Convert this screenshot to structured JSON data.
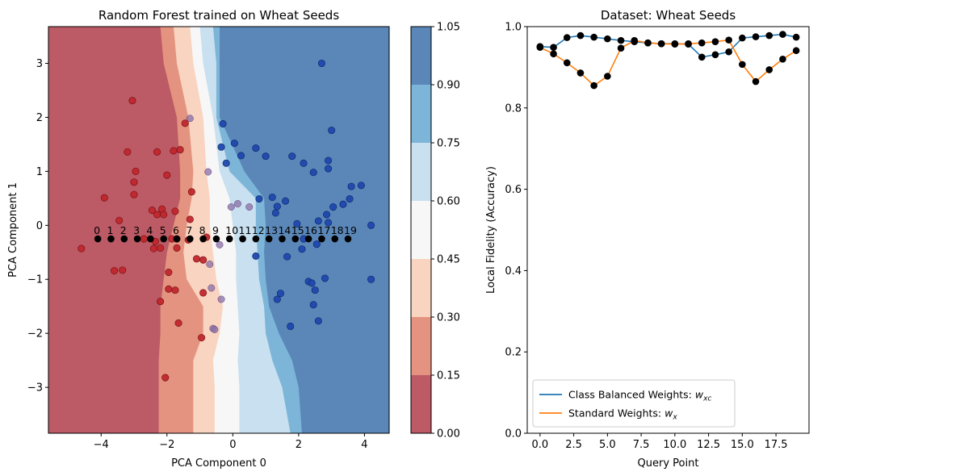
{
  "chart_data": [
    {
      "type": "scatter",
      "title": "Random Forest trained on Wheat Seeds",
      "xlabel": "PCA Component 0",
      "ylabel": "PCA Component 1",
      "xlim": [
        -5.6,
        4.75
      ],
      "ylim": [
        -3.85,
        3.68
      ],
      "x_ticks": [
        -4,
        -2,
        0,
        2,
        4
      ],
      "y_ticks": [
        -3,
        -2,
        -1,
        0,
        1,
        2,
        3
      ],
      "background": "decision surface (filled contour of predicted class-1 probability)",
      "boundary_profile": {
        "y": [
          3.68,
          3.0,
          2.0,
          1.0,
          0.5,
          0.0,
          -0.5,
          -1.0,
          -1.5,
          -2.0,
          -2.5,
          -3.0,
          -3.85
        ],
        "level_0.15": [
          -2.2,
          -2.1,
          -1.7,
          -1.6,
          -1.6,
          -1.8,
          -2.0,
          -2.1,
          -2.2,
          -2.2,
          -2.25,
          -2.25,
          -2.25
        ],
        "level_0.30": [
          -1.8,
          -1.7,
          -1.35,
          -1.2,
          -1.25,
          -1.4,
          -1.5,
          -1.4,
          -0.9,
          -0.9,
          -1.2,
          -1.2,
          -1.2
        ],
        "level_0.45": [
          -1.3,
          -1.2,
          -0.9,
          -0.8,
          -0.7,
          -0.7,
          -0.6,
          -0.5,
          -0.3,
          -0.4,
          -0.6,
          -0.55,
          -0.55
        ],
        "level_0.60": [
          -1.0,
          -0.9,
          -0.6,
          -0.4,
          -0.1,
          0.0,
          0.1,
          0.1,
          0.15,
          0.2,
          0.15,
          0.2,
          0.2
        ],
        "level_0.75": [
          -0.6,
          -0.5,
          -0.5,
          -0.1,
          0.7,
          0.7,
          0.75,
          0.8,
          0.95,
          1.0,
          1.2,
          1.5,
          1.75
        ],
        "level_0.90": [
          -0.4,
          -0.4,
          -0.4,
          0.35,
          0.95,
          1.0,
          0.95,
          1.0,
          1.1,
          1.4,
          1.8,
          2.0,
          2.1
        ]
      },
      "points_class0": [
        [
          -4.6,
          -0.43
        ],
        [
          -3.9,
          0.51
        ],
        [
          -3.6,
          -0.84
        ],
        [
          -3.45,
          0.09
        ],
        [
          -3.35,
          -0.83
        ],
        [
          -3.2,
          1.36
        ],
        [
          -3.05,
          2.31
        ],
        [
          -3.0,
          0.8
        ],
        [
          -2.95,
          1.0
        ],
        [
          -3.0,
          0.57
        ],
        [
          -2.7,
          -0.25
        ],
        [
          -2.45,
          0.28
        ],
        [
          -2.4,
          -0.43
        ],
        [
          -2.35,
          -0.3
        ],
        [
          -2.3,
          1.36
        ],
        [
          -2.3,
          0.2
        ],
        [
          -2.2,
          -0.42
        ],
        [
          -2.2,
          -1.41
        ],
        [
          -2.15,
          0.3
        ],
        [
          -2.1,
          0.2
        ],
        [
          -2.05,
          -2.82
        ],
        [
          -2.0,
          0.93
        ],
        [
          -1.95,
          -0.87
        ],
        [
          -1.95,
          -1.18
        ],
        [
          -1.85,
          -0.25
        ],
        [
          -1.8,
          1.38
        ],
        [
          -1.75,
          -1.2
        ],
        [
          -1.75,
          0.26
        ],
        [
          -1.7,
          -0.42
        ],
        [
          -1.7,
          -0.25
        ],
        [
          -1.65,
          -1.81
        ],
        [
          -1.6,
          1.4
        ],
        [
          -1.45,
          1.89
        ],
        [
          -1.35,
          -0.27
        ],
        [
          -1.3,
          0.11
        ],
        [
          -1.25,
          0.62
        ],
        [
          -1.1,
          -0.62
        ],
        [
          -0.95,
          -2.08
        ],
        [
          -0.9,
          -0.64
        ],
        [
          -0.9,
          -1.25
        ],
        [
          -0.8,
          -0.22
        ]
      ],
      "points_class1": [
        [
          -0.35,
          1.45
        ],
        [
          -0.3,
          1.88
        ],
        [
          -0.2,
          1.15
        ],
        [
          0.05,
          1.52
        ],
        [
          0.25,
          1.29
        ],
        [
          0.7,
          -0.57
        ],
        [
          0.7,
          1.43
        ],
        [
          0.8,
          0.49
        ],
        [
          1.0,
          1.28
        ],
        [
          1.2,
          0.52
        ],
        [
          1.3,
          0.23
        ],
        [
          1.35,
          0.35
        ],
        [
          1.35,
          -1.37
        ],
        [
          1.45,
          -1.26
        ],
        [
          1.6,
          0.45
        ],
        [
          1.65,
          -0.58
        ],
        [
          1.75,
          -1.87
        ],
        [
          1.8,
          1.28
        ],
        [
          1.95,
          0.03
        ],
        [
          2.1,
          -0.44
        ],
        [
          2.15,
          1.15
        ],
        [
          2.15,
          -0.25
        ],
        [
          2.3,
          -1.04
        ],
        [
          2.4,
          -1.07
        ],
        [
          2.45,
          0.98
        ],
        [
          2.45,
          -1.47
        ],
        [
          2.5,
          -1.2
        ],
        [
          2.55,
          -0.35
        ],
        [
          2.6,
          0.08
        ],
        [
          2.6,
          -1.77
        ],
        [
          2.7,
          3.0
        ],
        [
          2.8,
          -0.98
        ],
        [
          2.85,
          0.2
        ],
        [
          2.9,
          0.05
        ],
        [
          2.9,
          1.05
        ],
        [
          2.9,
          1.2
        ],
        [
          3.0,
          1.76
        ],
        [
          3.05,
          0.34
        ],
        [
          3.35,
          0.39
        ],
        [
          3.55,
          0.49
        ],
        [
          3.6,
          0.72
        ],
        [
          3.9,
          0.74
        ],
        [
          4.2,
          0.0
        ],
        [
          4.2,
          -1.0
        ]
      ],
      "points_ambiguous": [
        [
          -1.3,
          1.98
        ],
        [
          -0.75,
          0.99
        ],
        [
          -0.7,
          -0.72
        ],
        [
          -0.65,
          -1.16
        ],
        [
          -0.6,
          -1.91
        ],
        [
          -0.55,
          -1.93
        ],
        [
          -0.35,
          -1.37
        ],
        [
          -0.4,
          -0.36
        ],
        [
          -0.05,
          0.34
        ],
        [
          0.15,
          0.4
        ],
        [
          0.5,
          0.34
        ]
      ],
      "query_points": {
        "x": [
          -4.1,
          -3.7,
          -3.3,
          -2.9,
          -2.5,
          -2.1,
          -1.7,
          -1.3,
          -0.9,
          -0.5,
          -0.1,
          0.3,
          0.7,
          1.1,
          1.5,
          1.9,
          2.3,
          2.7,
          3.1,
          3.5
        ],
        "y": -0.25,
        "labels": [
          "0",
          "1",
          "2",
          "3",
          "4",
          "5",
          "6",
          "7",
          "8",
          "9",
          "10",
          "11",
          "12",
          "13",
          "14",
          "15",
          "16",
          "17",
          "18",
          "19"
        ]
      },
      "colorbar": {
        "levels": [
          0.0,
          0.15,
          0.3,
          0.45,
          0.6,
          0.75,
          0.9,
          1.05
        ],
        "tick_labels": [
          "0.00",
          "0.15",
          "0.30",
          "0.45",
          "0.60",
          "0.75",
          "0.90",
          "1.05"
        ],
        "colors": [
          "#bc5a66",
          "#e3937f",
          "#f9d4c0",
          "#f7f7f7",
          "#c8e0ef",
          "#7db5d9",
          "#5a87b8"
        ]
      },
      "colors": {
        "class0": "#c1272d",
        "class1": "#1f48ad",
        "ambiguous": "#8a6fa8",
        "query": "#000000"
      }
    },
    {
      "type": "line",
      "title": "Dataset: Wheat Seeds",
      "xlabel": "Query Point",
      "ylabel": "Local Fidelity (Accuracy)",
      "xlim": [
        -0.95,
        19.95
      ],
      "ylim": [
        0,
        1
      ],
      "x_ticks": [
        "0.0",
        "2.5",
        "5.0",
        "7.5",
        "10.0",
        "12.5",
        "15.0",
        "17.5"
      ],
      "y_ticks": [
        "0.0",
        "0.2",
        "0.4",
        "0.6",
        "0.8",
        "1.0"
      ],
      "legend_position": "lower-left",
      "x": [
        0,
        1,
        2,
        3,
        4,
        5,
        6,
        7,
        8,
        9,
        10,
        11,
        12,
        13,
        14,
        15,
        16,
        17,
        18,
        19
      ],
      "series": [
        {
          "name": "Class Balanced Weights: ",
          "sub": "xc",
          "color": "#1f77b4",
          "values": [
            0.951,
            0.949,
            0.973,
            0.978,
            0.974,
            0.97,
            0.966,
            0.963,
            0.96,
            0.958,
            0.958,
            0.957,
            0.925,
            0.931,
            0.938,
            0.972,
            0.975,
            0.978,
            0.981,
            0.974
          ]
        },
        {
          "name": "Standard Weights: ",
          "sub": "x",
          "color": "#ff7f0e",
          "values": [
            0.949,
            0.933,
            0.911,
            0.886,
            0.855,
            0.878,
            0.947,
            0.966,
            0.96,
            0.958,
            0.957,
            0.958,
            0.96,
            0.963,
            0.967,
            0.907,
            0.865,
            0.894,
            0.92,
            0.941
          ]
        }
      ],
      "marker_color": "#000000"
    }
  ]
}
